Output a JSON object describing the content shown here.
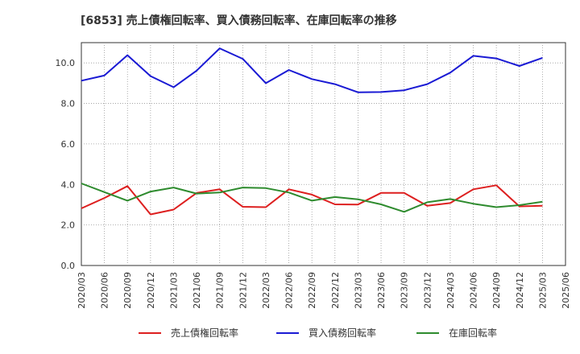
{
  "chart_data": {
    "type": "line",
    "title": "[6853]  売上債権回転率、買入債務回転率、在庫回転率の推移",
    "xlabel": "",
    "ylabel": "",
    "ylim": [
      0,
      11
    ],
    "yticks": [
      "0.0",
      "2.0",
      "4.0",
      "6.0",
      "8.0",
      "10.0"
    ],
    "ytick_values": [
      0,
      2,
      4,
      6,
      8,
      10
    ],
    "grid": true,
    "legend_position": "bottom",
    "x": [
      "2020/03",
      "2020/06",
      "2020/09",
      "2020/12",
      "2021/03",
      "2021/06",
      "2021/09",
      "2021/12",
      "2022/03",
      "2022/06",
      "2022/09",
      "2022/12",
      "2023/03",
      "2023/06",
      "2023/09",
      "2023/12",
      "2024/03",
      "2024/06",
      "2024/09",
      "2024/12",
      "2025/03",
      "2025/06"
    ],
    "series": [
      {
        "name": "売上債権回転率",
        "color": "#dd1f1f",
        "values": [
          2.82,
          3.33,
          3.92,
          2.52,
          2.76,
          3.58,
          3.76,
          2.9,
          2.88,
          3.76,
          3.5,
          3.02,
          3.01,
          3.58,
          3.58,
          2.95,
          3.08,
          3.76,
          3.96,
          2.92,
          2.95,
          null
        ]
      },
      {
        "name": "買入債務回転率",
        "color": "#1a1ad4",
        "values": [
          9.12,
          9.38,
          10.38,
          9.35,
          8.8,
          9.62,
          10.72,
          10.2,
          9.0,
          9.65,
          9.2,
          8.95,
          8.55,
          8.56,
          8.65,
          8.95,
          9.52,
          10.35,
          10.22,
          9.85,
          10.25,
          null
        ]
      },
      {
        "name": "在庫回転率",
        "color": "#2e8b2e",
        "values": [
          4.05,
          3.62,
          3.2,
          3.65,
          3.85,
          3.55,
          3.6,
          3.85,
          3.82,
          3.6,
          3.2,
          3.38,
          3.27,
          3.02,
          2.65,
          3.12,
          3.28,
          3.05,
          2.88,
          2.98,
          3.15,
          null
        ]
      }
    ]
  }
}
